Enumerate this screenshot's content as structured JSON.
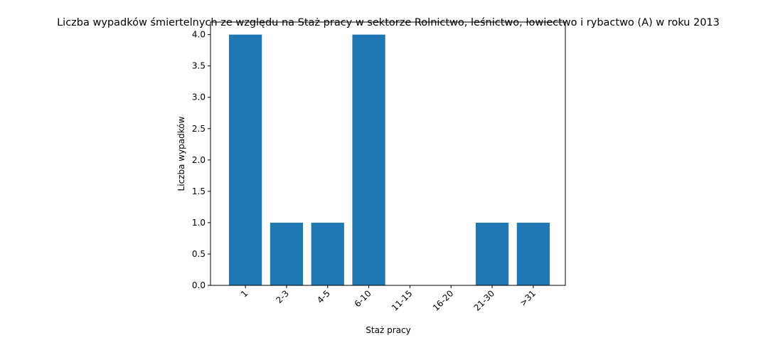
{
  "chart_data": {
    "type": "bar",
    "title": "Liczba wypadków śmiertelnych ze względu na Staż pracy w sektorze Rolnictwo, leśnictwo, łowiectwo i rybactwo (A) w roku 2013",
    "xlabel": "Staż pracy",
    "ylabel": "Liczba wypadków",
    "categories": [
      "1",
      "2-3",
      "4-5",
      "6-10",
      "11-15",
      "16-20",
      "21-30",
      ">31"
    ],
    "values": [
      4,
      1,
      1,
      4,
      0,
      0,
      1,
      1
    ],
    "ylim": [
      0,
      4.2
    ],
    "yticks": [
      0.0,
      0.5,
      1.0,
      1.5,
      2.0,
      2.5,
      3.0,
      3.5,
      4.0
    ],
    "ytick_labels": [
      "0.0",
      "0.5",
      "1.0",
      "1.5",
      "2.0",
      "2.5",
      "3.0",
      "3.5",
      "4.0"
    ],
    "xtick_rotation": 45,
    "grid": false,
    "bar_color": "#1f77b4"
  }
}
